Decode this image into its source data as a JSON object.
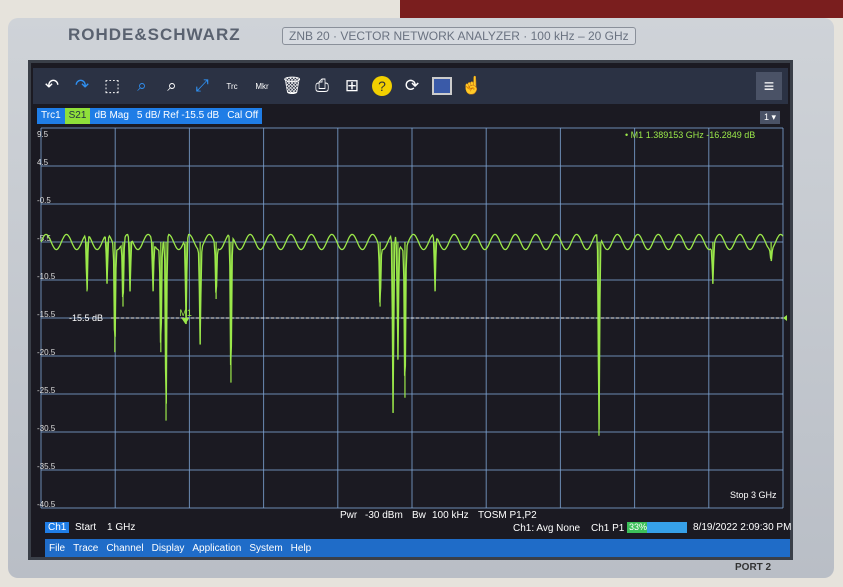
{
  "device": {
    "brand": "ROHDE&SCHWARZ",
    "model": "ZNB 20 · VECTOR NETWORK ANALYZER · 100 kHz – 20 GHz",
    "port_label": "PORT 2"
  },
  "toolbar": {
    "icons": [
      "undo-icon",
      "redo-icon",
      "zoom-area-icon",
      "zoom-1to1-icon",
      "zoom-settings-icon",
      "fit-icon",
      "add-trace-icon",
      "add-marker-icon",
      "delete-icon",
      "print-icon",
      "windows-icon",
      "help-icon",
      "refresh-icon",
      "display-icon",
      "touch-icon"
    ],
    "trc_label": "Trc",
    "mkr_label": "Mkr",
    "menu_icon": "hamburger-icon"
  },
  "trace_info": {
    "trace": "Trc1",
    "param": "S21",
    "format": "dB Mag",
    "scale": "5 dB/ Ref -15.5 dB",
    "cal": "Cal Off",
    "channel_selector": "1"
  },
  "marker_readout": {
    "name": "M1",
    "freq": "1.389153 GHz",
    "value": "-16.2849 dB"
  },
  "ref_label": "-15.5 dB",
  "status": {
    "channel": "Ch1",
    "start_label": "Start",
    "start": "1 GHz",
    "stop_label": "Stop",
    "stop": "3 GHz",
    "pwr_label": "Pwr",
    "pwr": "-30 dBm",
    "bw_label": "Bw",
    "bw": "100 kHz",
    "cal": "TOSM P1,P2",
    "avg": "Ch1: Avg None",
    "port": "Ch1 P1",
    "progress": "33%",
    "progress_value": 33,
    "datetime": "8/19/2022 2:09:30 PM"
  },
  "menu": [
    "File",
    "Trace",
    "Channel",
    "Display",
    "Application",
    "System",
    "Help"
  ],
  "colors": {
    "trace": "#9be84a",
    "grid": "#7fa6d6",
    "accent": "#1f7de6",
    "background": "#1b1a22"
  },
  "chart_data": {
    "type": "line",
    "xlim": [
      1,
      3
    ],
    "x_unit": "GHz",
    "ylim": [
      -40.5,
      9.5
    ],
    "y_unit": "dB",
    "yticks": [
      "9.5",
      "4.5",
      "-0.5",
      "-5.5",
      "-10.5",
      "-15.5",
      "-20.5",
      "-25.5",
      "-30.5",
      "-35.5",
      "-40.5"
    ],
    "grid": true,
    "reference_db": -15.5,
    "baseline_db": -5.5,
    "ripple_db": 1.0,
    "ripple_period_ghz": 0.055,
    "dips": [
      [
        1.124,
        -12
      ],
      [
        1.178,
        -11
      ],
      [
        1.199,
        -20
      ],
      [
        1.221,
        -14
      ],
      [
        1.24,
        -12
      ],
      [
        1.302,
        -12
      ],
      [
        1.323,
        -20
      ],
      [
        1.337,
        -29
      ],
      [
        1.391,
        -16.3
      ],
      [
        1.429,
        -19
      ],
      [
        1.472,
        -13
      ],
      [
        1.512,
        -24
      ],
      [
        1.914,
        -14
      ],
      [
        1.949,
        -28
      ],
      [
        1.962,
        -21
      ],
      [
        1.981,
        -26
      ],
      [
        2.062,
        -12
      ],
      [
        2.504,
        -31
      ],
      [
        2.811,
        -11
      ],
      [
        2.968,
        -8
      ]
    ],
    "marker": {
      "name": "M1",
      "x": 1.389153,
      "y": -16.2849
    }
  }
}
